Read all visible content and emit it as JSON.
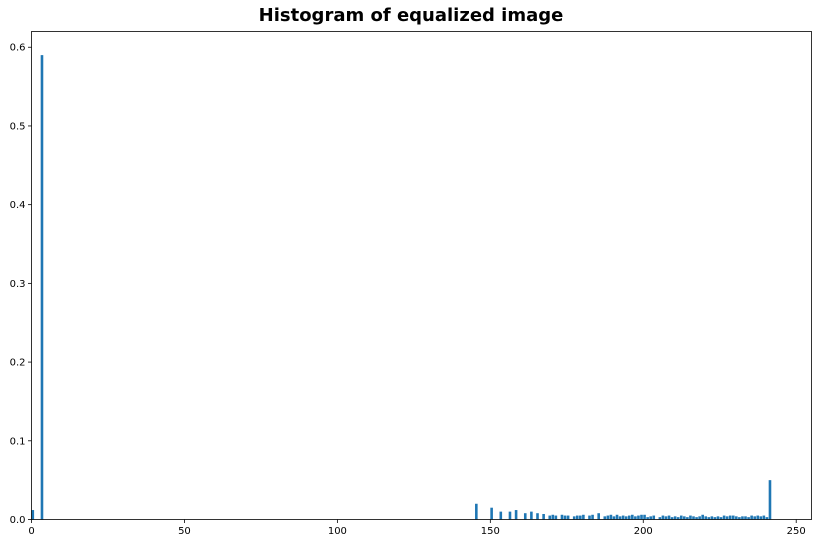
{
  "chart_data": {
    "type": "bar",
    "title": "Histogram of equalized image",
    "xlabel": "",
    "ylabel": "",
    "xlim": [
      0,
      255
    ],
    "ylim": [
      0,
      0.62
    ],
    "grid": false,
    "legend": "none",
    "bar_color": "#1f77b4",
    "bar_width": 1.0,
    "xticks": [
      0,
      50,
      100,
      150,
      200,
      250
    ],
    "xtick_labels": [
      "0",
      "50",
      "100",
      "150",
      "200",
      "250"
    ],
    "yticks": [
      0.0,
      0.1,
      0.2,
      0.3,
      0.4,
      0.5,
      0.6
    ],
    "ytick_labels": [
      "0.0",
      "0.1",
      "0.2",
      "0.3",
      "0.4",
      "0.5",
      "0.6"
    ],
    "x": [
      0,
      3,
      145,
      150,
      153,
      156,
      158,
      161,
      163,
      165,
      167,
      169,
      170,
      171,
      173,
      174,
      175,
      177,
      178,
      179,
      180,
      182,
      183,
      185,
      187,
      188,
      189,
      190,
      191,
      192,
      193,
      194,
      195,
      196,
      197,
      198,
      199,
      200,
      201,
      202,
      203,
      205,
      206,
      207,
      208,
      209,
      210,
      211,
      212,
      213,
      214,
      215,
      216,
      217,
      218,
      219,
      220,
      221,
      222,
      223,
      224,
      225,
      226,
      227,
      228,
      229,
      230,
      231,
      232,
      233,
      234,
      235,
      236,
      237,
      238,
      239,
      240,
      241
    ],
    "values": [
      0.012,
      0.59,
      0.02,
      0.015,
      0.01,
      0.01,
      0.012,
      0.008,
      0.01,
      0.008,
      0.007,
      0.005,
      0.006,
      0.005,
      0.006,
      0.005,
      0.005,
      0.004,
      0.005,
      0.005,
      0.006,
      0.005,
      0.006,
      0.008,
      0.004,
      0.005,
      0.006,
      0.004,
      0.006,
      0.004,
      0.005,
      0.004,
      0.005,
      0.006,
      0.004,
      0.005,
      0.006,
      0.006,
      0.003,
      0.004,
      0.005,
      0.003,
      0.005,
      0.004,
      0.005,
      0.003,
      0.004,
      0.003,
      0.005,
      0.004,
      0.003,
      0.005,
      0.004,
      0.003,
      0.004,
      0.006,
      0.004,
      0.003,
      0.004,
      0.003,
      0.004,
      0.003,
      0.005,
      0.004,
      0.005,
      0.005,
      0.004,
      0.003,
      0.004,
      0.004,
      0.003,
      0.005,
      0.004,
      0.005,
      0.004,
      0.005,
      0.003,
      0.05
    ]
  }
}
